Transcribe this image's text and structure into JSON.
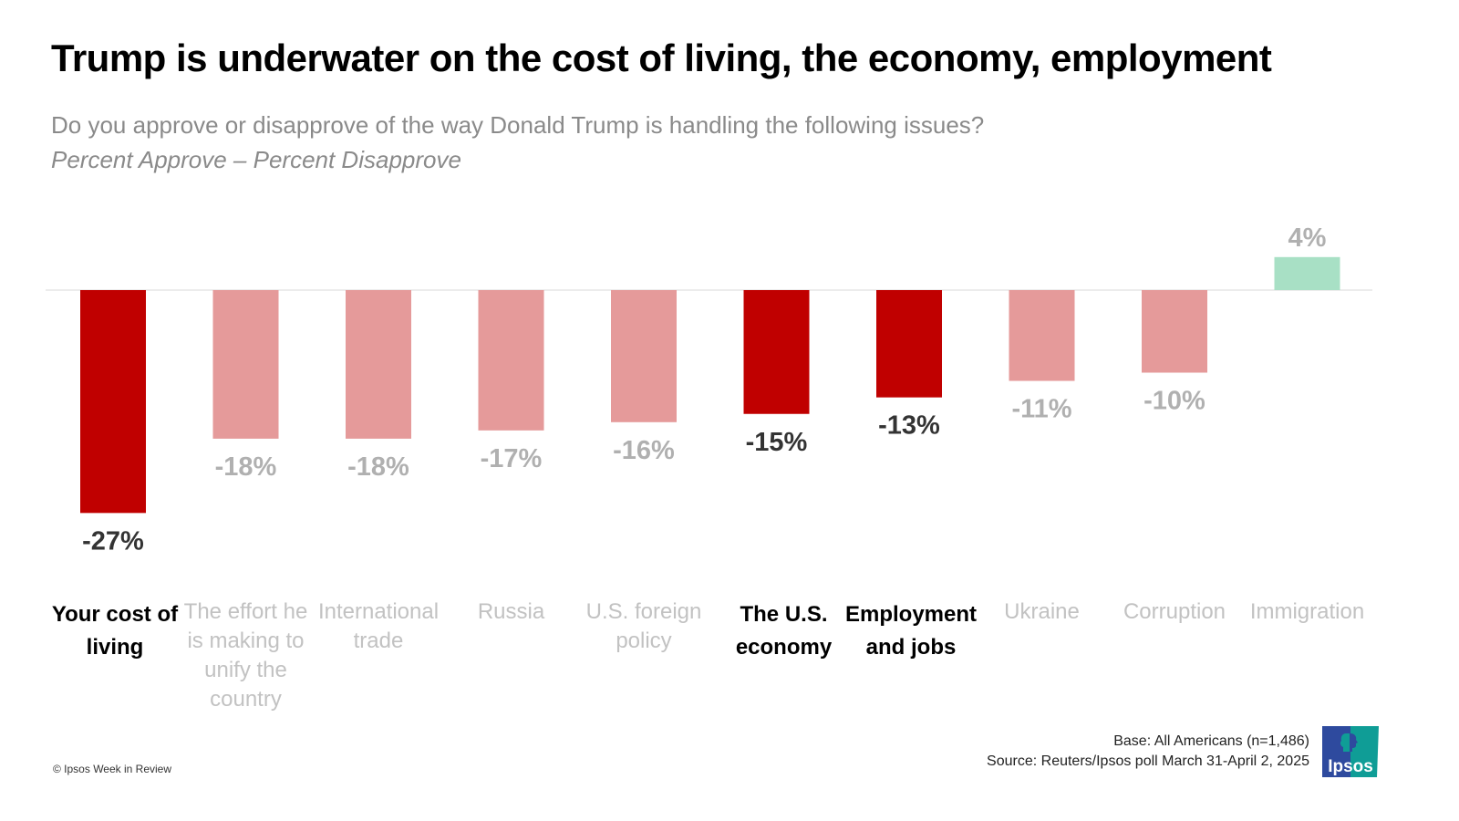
{
  "header": {
    "title": "Trump is underwater on the cost of living, the economy, employment",
    "subtitle": "Do you approve or disapprove of the way Donald Trump is handling the following issues?",
    "measure": "Percent Approve – Percent Disapprove"
  },
  "chart_data": {
    "type": "bar",
    "title": "Trump is underwater on the cost of living, the economy, employment",
    "subtitle": "Do you approve or disapprove of the way Donald Trump is handling the following issues?",
    "xlabel": "",
    "ylabel": "Percent Approve – Percent Disapprove",
    "ylim": [
      -30,
      6
    ],
    "grid": false,
    "categories": [
      "Your cost of living",
      "The effort he is making to unify the country",
      "International trade",
      "Russia",
      "U.S. foreign policy",
      "The U.S. economy",
      "Employment and jobs",
      "Ukraine",
      "Corruption",
      "Immigration"
    ],
    "values": [
      -27,
      -18,
      -18,
      -17,
      -16,
      -15,
      -13,
      -11,
      -10,
      4
    ],
    "value_labels": [
      "-27%",
      "-18%",
      "-18%",
      "-17%",
      "-16%",
      "-15%",
      "-13%",
      "-11%",
      "-10%",
      "4%"
    ],
    "highlighted": [
      true,
      false,
      false,
      false,
      false,
      true,
      true,
      false,
      false,
      false
    ],
    "colors": {
      "negative_highlight": "#c00000",
      "negative_muted": "#e59a9a",
      "positive": "#a8e0c5",
      "label_highlight": "#333333",
      "label_muted": "#b0b0b0",
      "baseline": "#e6e6e6"
    }
  },
  "footer": {
    "copyright": "© Ipsos Week in Review",
    "base": "Base: All Americans (n=1,486)",
    "source": "Source: Reuters/Ipsos poll March 31-April 2, 2025",
    "logo_text": "Ipsos"
  }
}
